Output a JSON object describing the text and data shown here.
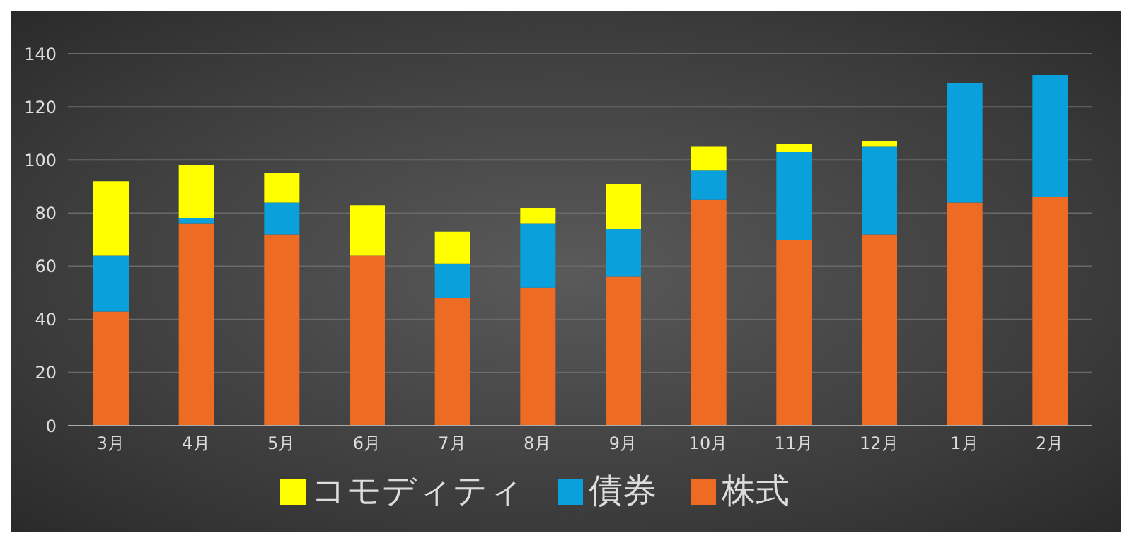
{
  "chart_data": {
    "type": "bar",
    "stacked": true,
    "categories": [
      "3月",
      "4月",
      "5月",
      "6月",
      "7月",
      "8月",
      "9月",
      "10月",
      "11月",
      "12月",
      "1月",
      "2月"
    ],
    "series": [
      {
        "name": "株式",
        "color": "#ee6b24",
        "values": [
          43,
          76,
          72,
          64,
          48,
          52,
          56,
          85,
          70,
          72,
          84,
          86
        ]
      },
      {
        "name": "債券",
        "color": "#0aa0dc",
        "values": [
          21,
          2,
          12,
          0,
          13,
          24,
          18,
          11,
          33,
          33,
          45,
          46
        ]
      },
      {
        "name": "コモディティ",
        "color": "#ffff00",
        "values": [
          28,
          20,
          11,
          19,
          12,
          6,
          17,
          9,
          3,
          2,
          0,
          0
        ]
      }
    ],
    "ylim": [
      0,
      140
    ],
    "yticks": [
      0,
      20,
      40,
      60,
      80,
      100,
      120,
      140
    ],
    "grid": "y",
    "legend": "bottom"
  }
}
